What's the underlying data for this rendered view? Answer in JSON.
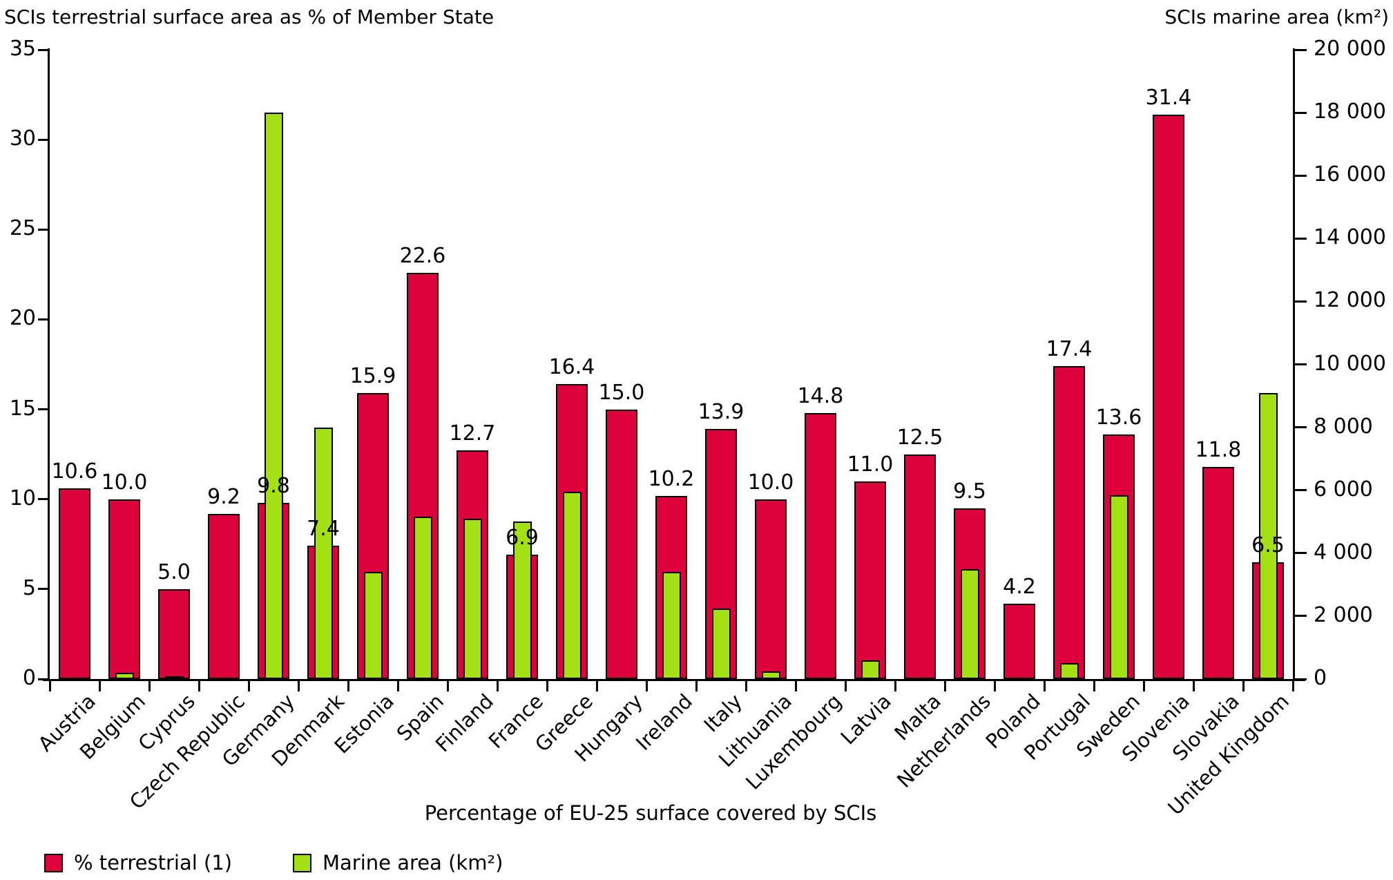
{
  "titles": {
    "left_axis_title": "SCIs terrestrial surface area as % of Member State",
    "right_axis_title": "SCIs marine area (km²)",
    "x_axis_title": "Percentage of EU-25 surface covered by SCIs"
  },
  "legend": [
    {
      "label": "% terrestrial (1)",
      "color": "#DC023C"
    },
    {
      "label": "Marine area (km²)",
      "color": "#A3E114"
    }
  ],
  "colors": {
    "terrestrial_bar": "#DC023C",
    "marine_bar": "#A3E114",
    "axis": "#000000",
    "background": "#FFFFFF"
  },
  "chart_data": {
    "type": "bar",
    "title": "",
    "x_axis_title": "Percentage of EU-25 surface covered by SCIs",
    "left_axis": {
      "title": "SCIs terrestrial surface area as % of Member State",
      "min": 0,
      "max": 35,
      "tick_step": 5,
      "tick_labels": [
        "0",
        "5",
        "10",
        "15",
        "20",
        "25",
        "30",
        "35"
      ]
    },
    "right_axis": {
      "title": "SCIs marine area (km²)",
      "min": 0,
      "max": 20000,
      "tick_step": 2000,
      "tick_labels": [
        "0",
        "2 000",
        "4 000",
        "6 000",
        "8 000",
        "10 000",
        "12 000",
        "14 000",
        "16 000",
        "18 000",
        "20 000"
      ]
    },
    "grid": false,
    "legend_position": "bottom-left",
    "categories": [
      "Austria",
      "Belgium",
      "Cyprus",
      "Czech Republic",
      "Germany",
      "Denmark",
      "Estonia",
      "Spain",
      "Finland",
      "France",
      "Greece",
      "Hungary",
      "Ireland",
      "Italy",
      "Lithuania",
      "Luxembourg",
      "Latvia",
      "Malta",
      "Netherlands",
      "Poland",
      "Portugal",
      "Sweden",
      "Slovenia",
      "Slovakia",
      "United Kingdom"
    ],
    "series": [
      {
        "name": "% terrestrial (1)",
        "axis": "left",
        "color": "#DC023C",
        "values_labeled_on_chart": true,
        "values": [
          10.6,
          10.0,
          5.0,
          9.2,
          9.8,
          7.4,
          15.9,
          22.6,
          12.7,
          6.9,
          16.4,
          15.0,
          10.2,
          13.9,
          10.0,
          14.8,
          11.0,
          12.5,
          9.5,
          4.2,
          17.4,
          13.6,
          31.4,
          11.8,
          6.5
        ]
      },
      {
        "name": "Marine area (km²)",
        "axis": "right",
        "color": "#A3E114",
        "values_labeled_on_chart": false,
        "values": [
          0,
          200,
          50,
          0,
          18000,
          8000,
          3400,
          5150,
          5100,
          5000,
          5950,
          0,
          3400,
          2250,
          250,
          0,
          600,
          0,
          3500,
          0,
          500,
          5850,
          0,
          0,
          9100
        ]
      }
    ]
  }
}
